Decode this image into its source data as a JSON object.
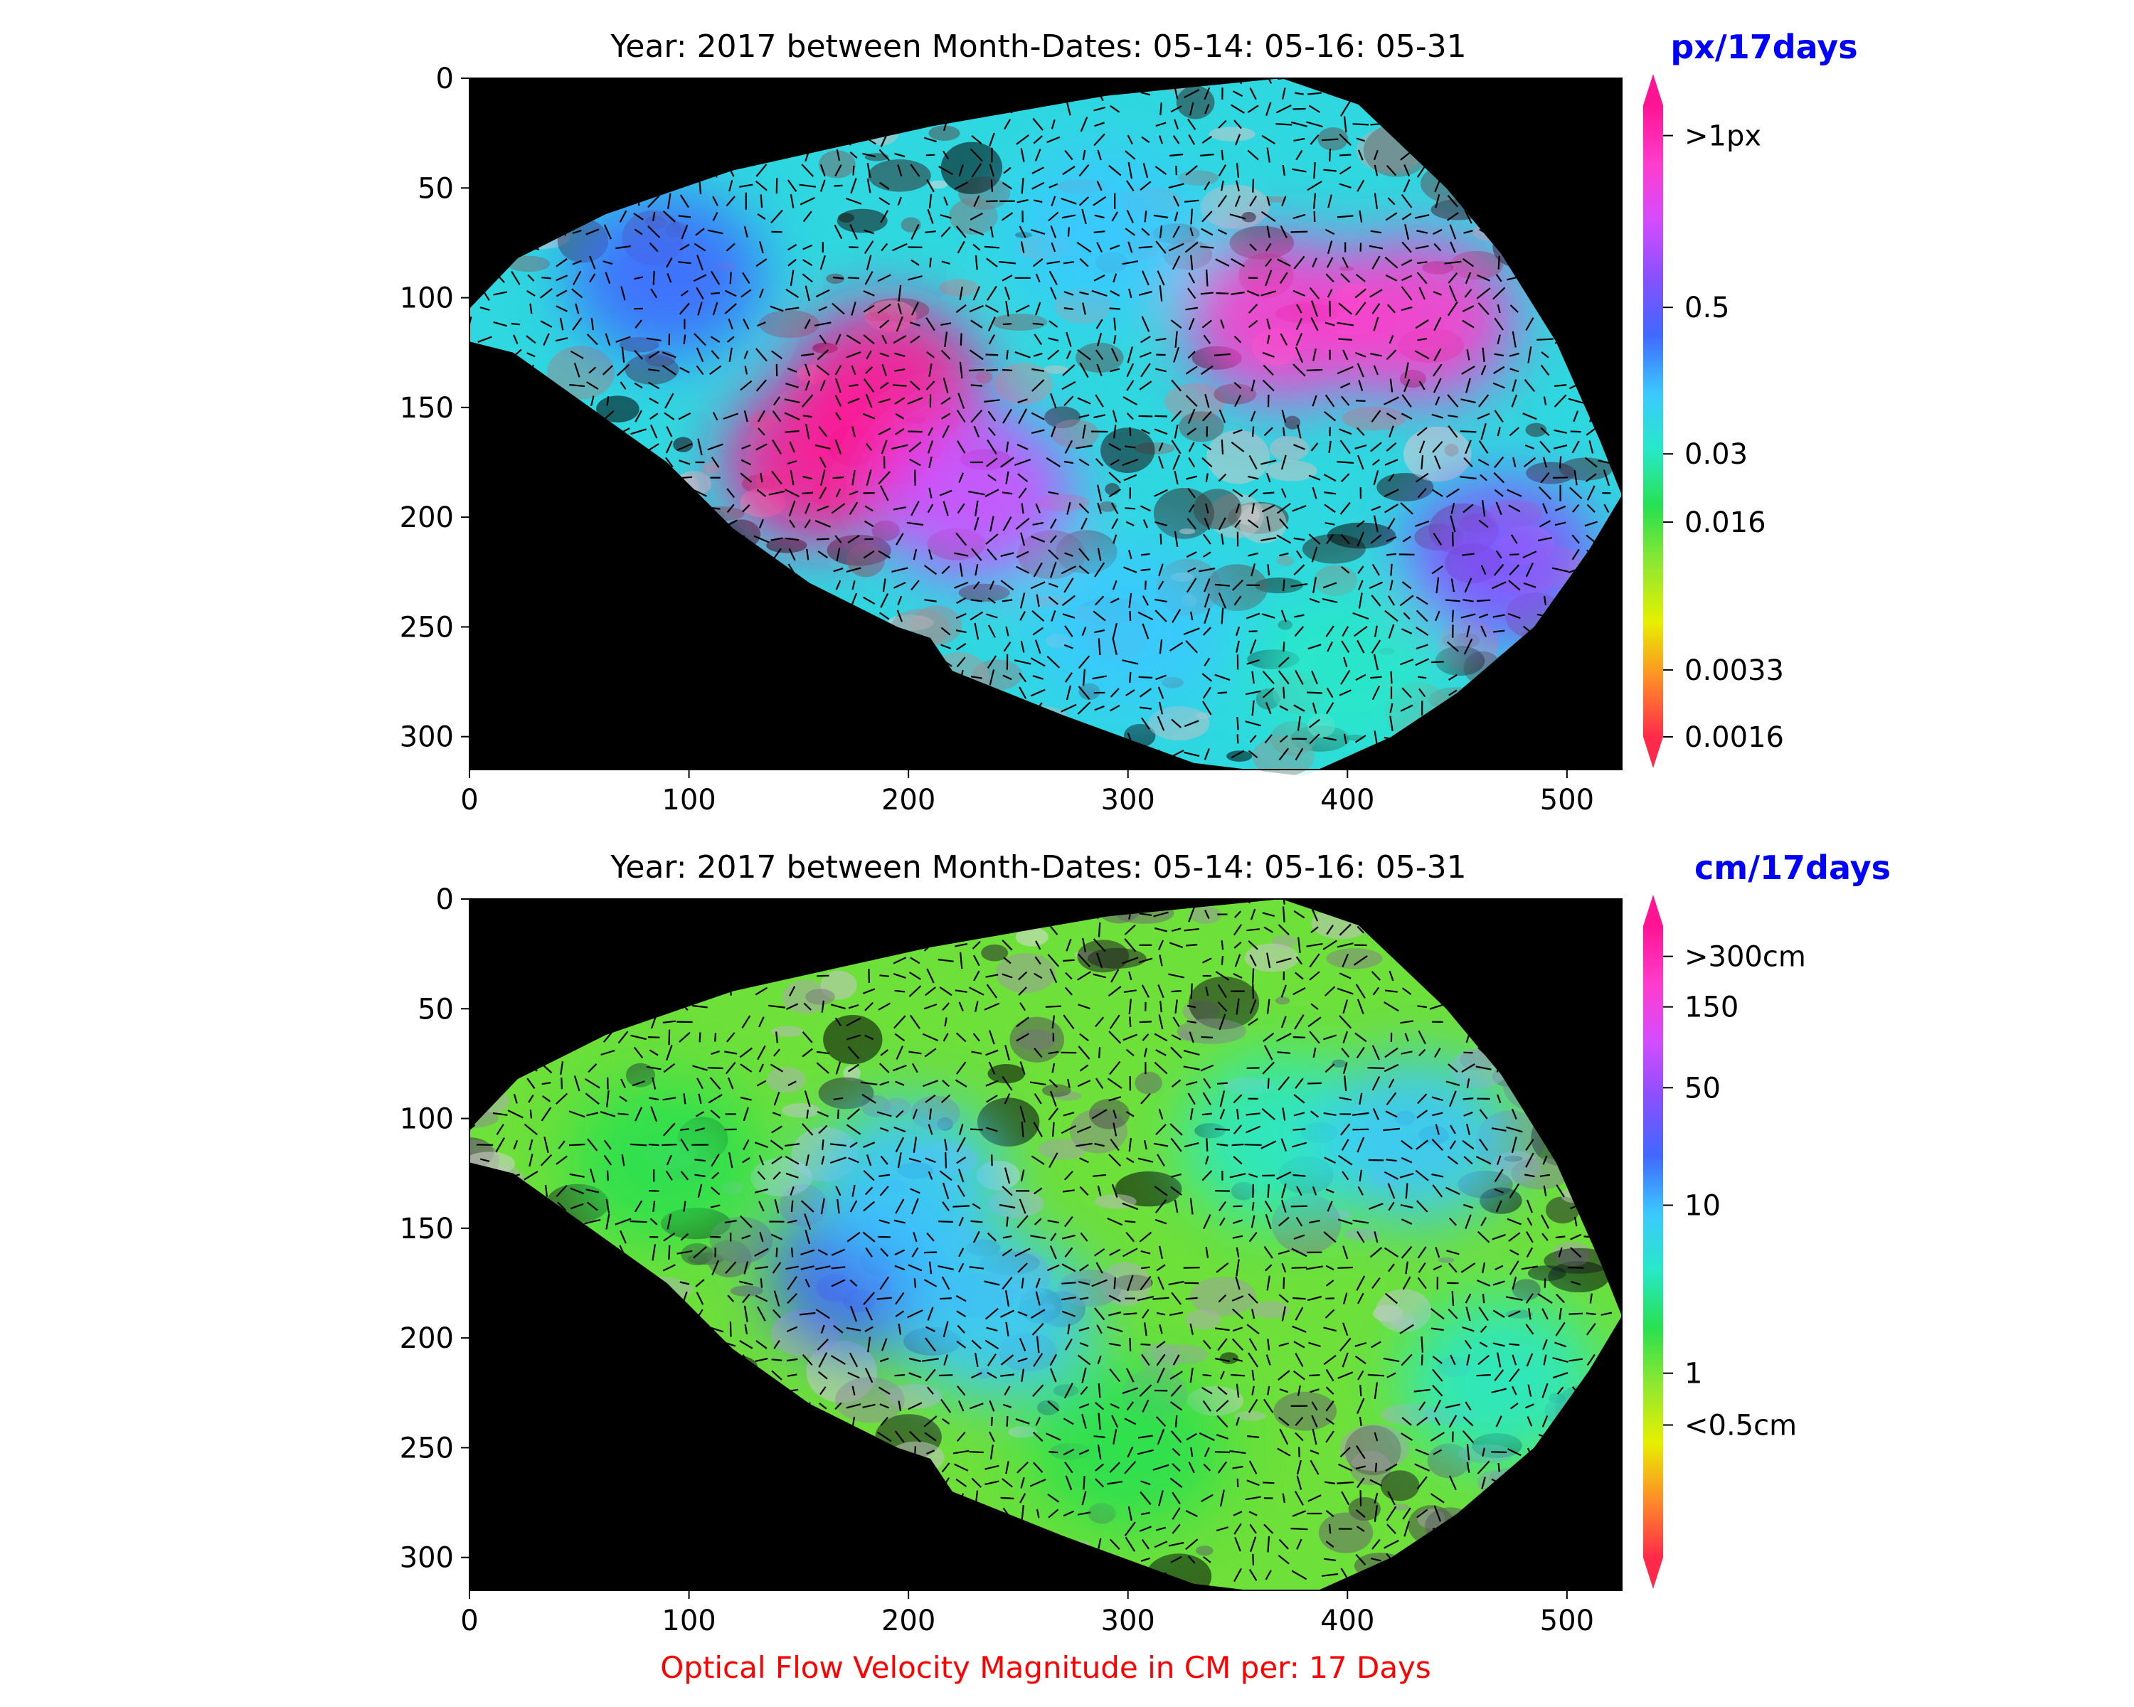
{
  "chart_data": [
    {
      "type": "heatmap",
      "title": "Year: 2017 between Month-Dates: 05-14: 05-16: 05-31",
      "xlim": [
        0,
        525
      ],
      "ylim": [
        315,
        0
      ],
      "x_ticks": [
        "0",
        "100",
        "200",
        "300",
        "400",
        "500"
      ],
      "y_ticks": [
        "0",
        "50",
        "100",
        "150",
        "200",
        "250",
        "300"
      ],
      "x_tick_values": [
        0,
        100,
        200,
        300,
        400,
        500
      ],
      "y_tick_values": [
        0,
        50,
        100,
        150,
        200,
        250,
        300
      ],
      "colorbar": {
        "title": "px/17days",
        "title_color": "#0000ff",
        "ticks": [
          {
            "label": ">1px",
            "frac": 0.952
          },
          {
            "label": "0.5",
            "frac": 0.68
          },
          {
            "label": "0.03",
            "frac": 0.448
          },
          {
            "label": "0.016",
            "frac": 0.34
          },
          {
            "label": "0.0033",
            "frac": 0.106
          },
          {
            "label": "0.0016",
            "frac": 0.0
          }
        ],
        "colors": [
          "#ff2a4a",
          "#ff8c28",
          "#e6f000",
          "#90e830",
          "#28e050",
          "#28e8c8",
          "#3cc8ff",
          "#4068ff",
          "#8850ff",
          "#d44cff",
          "#ff3ccc",
          "#ff1493"
        ],
        "extend": "both"
      },
      "regions": [
        {
          "label": "",
          "x": 190,
          "y": 140,
          "magnitude": 1.0
        },
        {
          "label": "",
          "x": 160,
          "y": 175,
          "magnitude": 1.0
        },
        {
          "label": "",
          "x": 230,
          "y": 190,
          "magnitude": 0.85
        },
        {
          "label": "",
          "x": 370,
          "y": 110,
          "magnitude": 0.9
        },
        {
          "label": "",
          "x": 432,
          "y": 110,
          "magnitude": 0.95
        },
        {
          "label": "",
          "x": 470,
          "y": 220,
          "magnitude": 0.75
        },
        {
          "label": "",
          "x": 90,
          "y": 90,
          "magnitude": 0.6
        },
        {
          "label": "",
          "x": 290,
          "y": 70,
          "magnitude": 0.55
        },
        {
          "label": "",
          "x": 300,
          "y": 250,
          "magnitude": 0.55
        },
        {
          "label": "",
          "x": 400,
          "y": 270,
          "magnitude": 0.45
        }
      ]
    },
    {
      "type": "heatmap",
      "title": "Year: 2017 between Month-Dates: 05-14: 05-16: 05-31",
      "xlim": [
        0,
        525
      ],
      "ylim": [
        315,
        0
      ],
      "x_ticks": [
        "0",
        "100",
        "200",
        "300",
        "400",
        "500"
      ],
      "y_ticks": [
        "0",
        "50",
        "100",
        "150",
        "200",
        "250",
        "300"
      ],
      "x_tick_values": [
        0,
        100,
        200,
        300,
        400,
        500
      ],
      "y_tick_values": [
        0,
        50,
        100,
        150,
        200,
        250,
        300
      ],
      "colorbar": {
        "title": "cm/17days",
        "title_color": "#0000ff",
        "ticks": [
          {
            "label": ">300cm",
            "frac": 0.952
          },
          {
            "label": "150",
            "frac": 0.872
          },
          {
            "label": "50",
            "frac": 0.744
          },
          {
            "label": "10",
            "frac": 0.558
          },
          {
            "label": "1",
            "frac": 0.292
          },
          {
            "label": "<0.5cm",
            "frac": 0.21
          }
        ],
        "colors": [
          "#ff2a4a",
          "#ff8c28",
          "#e6f000",
          "#90e830",
          "#28e050",
          "#28e8c8",
          "#3cc8ff",
          "#4068ff",
          "#8850ff",
          "#d44cff",
          "#ff3ccc",
          "#ff1493"
        ],
        "extend": "both"
      },
      "regions": [
        {
          "label": "",
          "x": 180,
          "y": 170,
          "magnitude": 0.62
        },
        {
          "label": "",
          "x": 200,
          "y": 130,
          "magnitude": 0.55
        },
        {
          "label": "",
          "x": 240,
          "y": 190,
          "magnitude": 0.5
        },
        {
          "label": "",
          "x": 370,
          "y": 110,
          "magnitude": 0.48
        },
        {
          "label": "",
          "x": 432,
          "y": 110,
          "magnitude": 0.5
        },
        {
          "label": "",
          "x": 90,
          "y": 120,
          "magnitude": 0.4
        },
        {
          "label": "",
          "x": 300,
          "y": 250,
          "magnitude": 0.38
        },
        {
          "label": "",
          "x": 470,
          "y": 220,
          "magnitude": 0.42
        }
      ]
    }
  ],
  "footer": {
    "note": "Optical Flow Velocity Magnitude in CM per: 17 Days"
  }
}
